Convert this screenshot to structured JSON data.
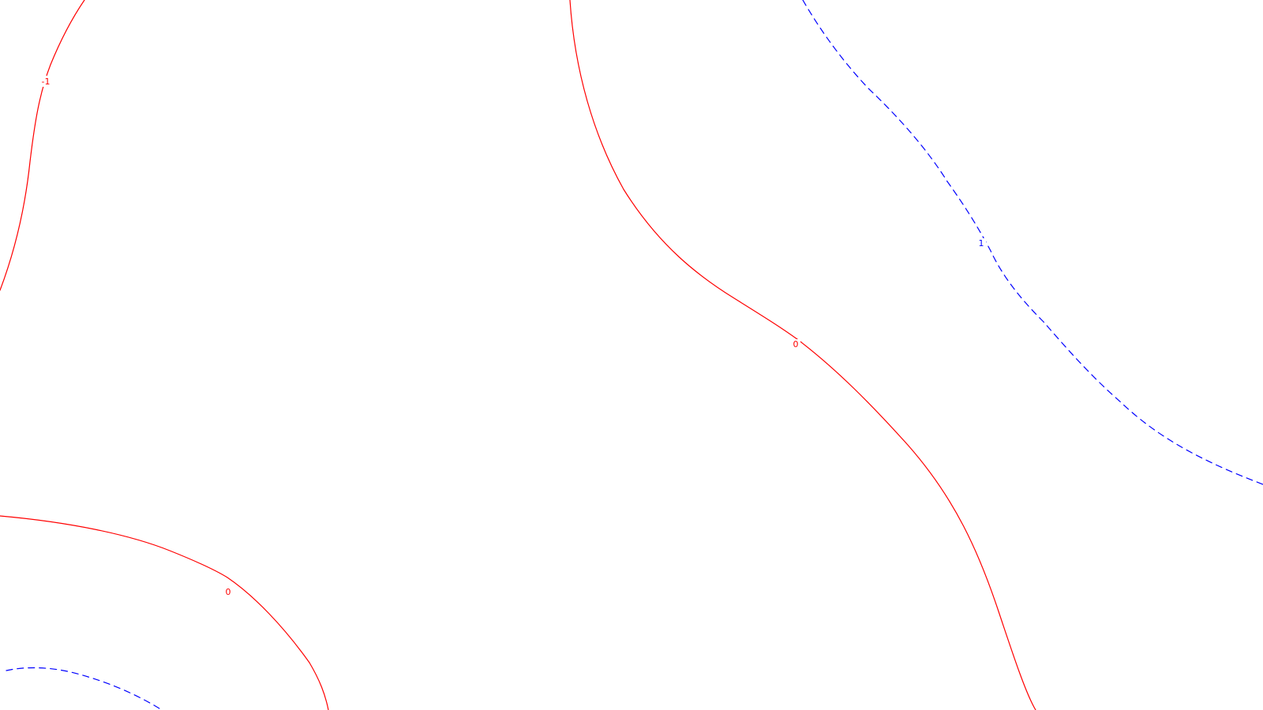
{
  "chart_data": {
    "type": "contour",
    "title": "",
    "xlabel": "",
    "ylabel": "",
    "grid": false,
    "legend": "none",
    "colors": {
      "negative": "#ff0000",
      "zero": "#ff0000",
      "positive": "#0000ff",
      "background": "#ffffff"
    },
    "levels": [
      {
        "value": -1,
        "label": "-1",
        "color": "#ff0000",
        "dash": "solid",
        "segments": 1
      },
      {
        "value": 0,
        "label": "0",
        "color": "#ff0000",
        "dash": "solid",
        "segments": 2
      },
      {
        "value": 1,
        "label": "1",
        "color": "#0000ff",
        "dash": "dashed",
        "segments": 2
      }
    ],
    "labels": [
      "-1",
      "0",
      "0",
      "1"
    ]
  }
}
